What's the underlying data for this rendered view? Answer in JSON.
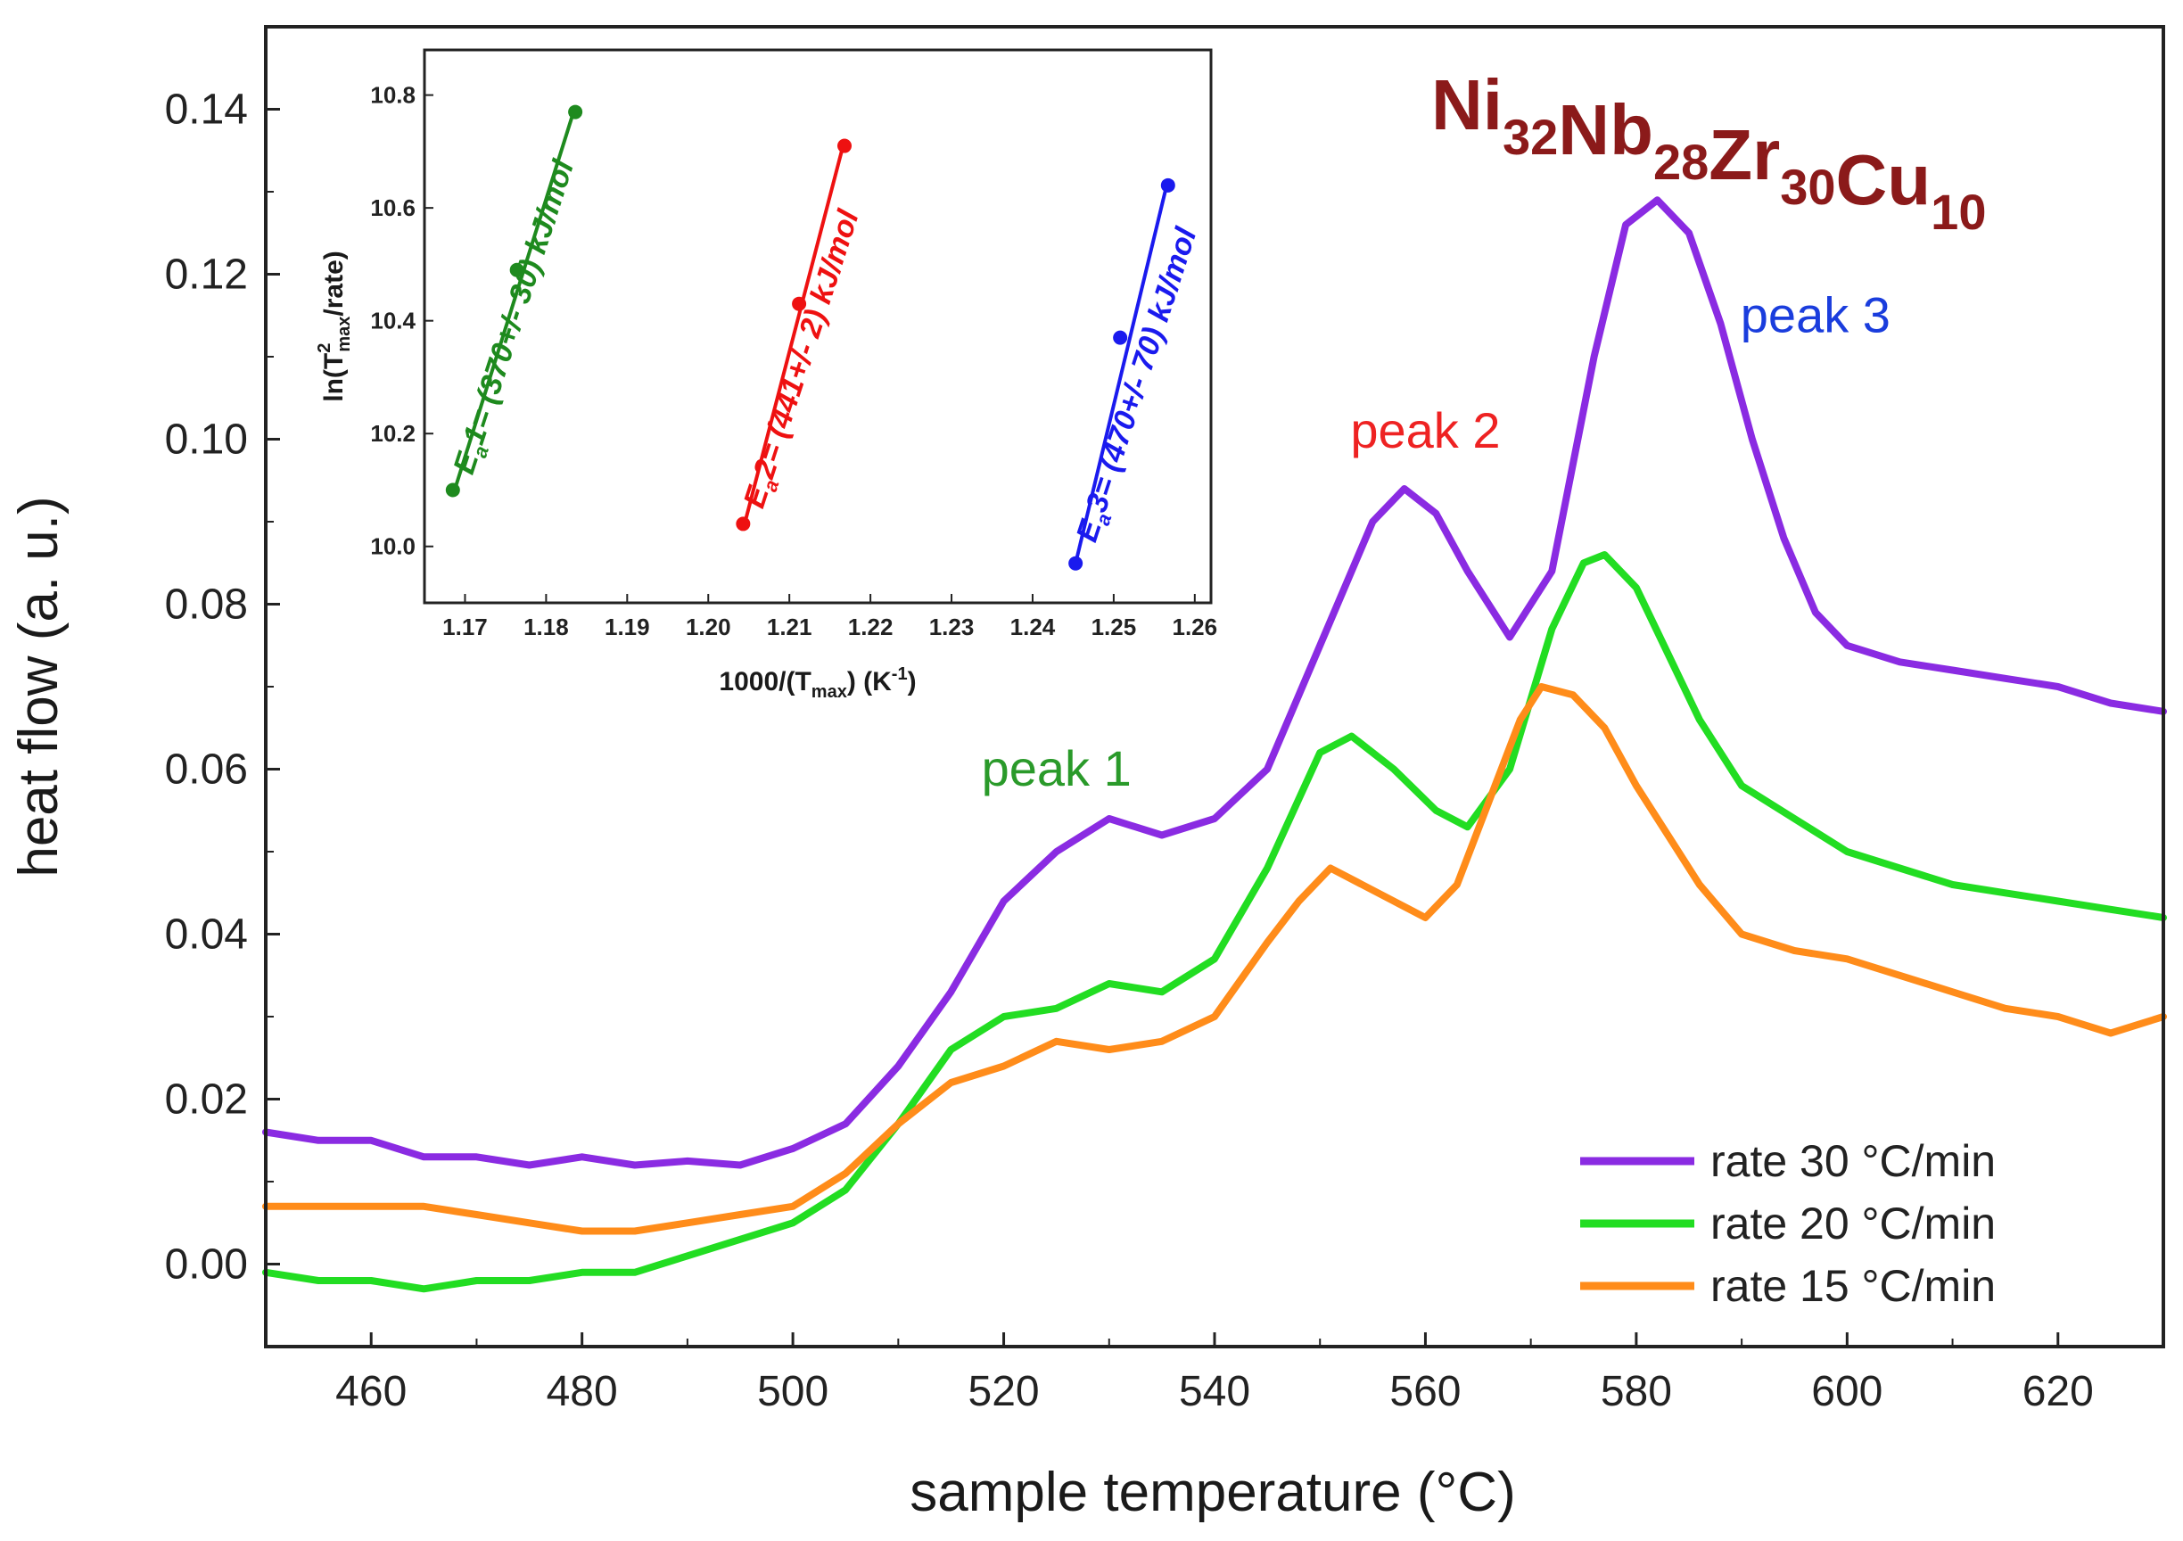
{
  "chart_data": [
    {
      "type": "line",
      "title": "Ni32Nb28Zr30Cu10",
      "title_parts": [
        {
          "text": "Ni",
          "sub": "32"
        },
        {
          "text": "Nb",
          "sub": "28"
        },
        {
          "text": "Zr",
          "sub": "30"
        },
        {
          "text": "Cu",
          "sub": "10"
        }
      ],
      "title_color": "#8b1a1a",
      "xlabel": "sample temperature (°C)",
      "ylabel": "heat flow (a. u.)",
      "xlim": [
        450,
        630
      ],
      "ylim": [
        -0.01,
        0.15
      ],
      "xticks": [
        460,
        480,
        500,
        520,
        540,
        560,
        580,
        600,
        620
      ],
      "yticks": [
        0.0,
        0.02,
        0.04,
        0.06,
        0.08,
        0.1,
        0.12,
        0.14
      ],
      "ytick_labels": [
        "0.00",
        "0.02",
        "0.04",
        "0.06",
        "0.08",
        "0.10",
        "0.12",
        "0.14"
      ],
      "legend_position": "bottom-right",
      "series": [
        {
          "name": "rate 30 °C/min",
          "color": "#8a2be2",
          "x": [
            450,
            455,
            460,
            465,
            470,
            475,
            480,
            485,
            490,
            495,
            500,
            505,
            510,
            515,
            520,
            525,
            530,
            535,
            540,
            545,
            550,
            555,
            558,
            561,
            564,
            568,
            572,
            576,
            579,
            582,
            585,
            588,
            591,
            594,
            597,
            600,
            605,
            610,
            615,
            620,
            625,
            630
          ],
          "y": [
            0.016,
            0.015,
            0.015,
            0.013,
            0.013,
            0.012,
            0.013,
            0.012,
            0.0125,
            0.012,
            0.014,
            0.017,
            0.024,
            0.033,
            0.044,
            0.05,
            0.054,
            0.052,
            0.054,
            0.06,
            0.075,
            0.09,
            0.094,
            0.091,
            0.084,
            0.076,
            0.084,
            0.11,
            0.126,
            0.129,
            0.125,
            0.114,
            0.1,
            0.088,
            0.079,
            0.075,
            0.073,
            0.072,
            0.071,
            0.07,
            0.068,
            0.067
          ]
        },
        {
          "name": "rate 20 °C/min",
          "color": "#22dd22",
          "x": [
            450,
            455,
            460,
            465,
            470,
            475,
            480,
            485,
            490,
            495,
            500,
            505,
            510,
            515,
            520,
            525,
            530,
            535,
            540,
            545,
            550,
            553,
            557,
            561,
            564,
            568,
            572,
            575,
            577,
            580,
            583,
            586,
            590,
            595,
            600,
            605,
            610,
            615,
            620,
            625,
            630
          ],
          "y": [
            -0.001,
            -0.002,
            -0.002,
            -0.003,
            -0.002,
            -0.002,
            -0.001,
            -0.001,
            0.001,
            0.003,
            0.005,
            0.009,
            0.017,
            0.026,
            0.03,
            0.031,
            0.034,
            0.033,
            0.037,
            0.048,
            0.062,
            0.064,
            0.06,
            0.055,
            0.053,
            0.06,
            0.077,
            0.085,
            0.086,
            0.082,
            0.074,
            0.066,
            0.058,
            0.054,
            0.05,
            0.048,
            0.046,
            0.045,
            0.044,
            0.043,
            0.042
          ]
        },
        {
          "name": "rate 15 °C/min",
          "color": "#ff8c1a",
          "x": [
            450,
            455,
            460,
            465,
            470,
            475,
            480,
            485,
            490,
            495,
            500,
            505,
            510,
            515,
            520,
            525,
            530,
            535,
            540,
            545,
            548,
            551,
            554,
            557,
            560,
            563,
            566,
            569,
            571,
            574,
            577,
            580,
            583,
            586,
            590,
            595,
            600,
            605,
            610,
            615,
            620,
            625,
            630
          ],
          "y": [
            0.007,
            0.007,
            0.007,
            0.007,
            0.006,
            0.005,
            0.004,
            0.004,
            0.005,
            0.006,
            0.007,
            0.011,
            0.017,
            0.022,
            0.024,
            0.027,
            0.026,
            0.027,
            0.03,
            0.039,
            0.044,
            0.048,
            0.046,
            0.044,
            0.042,
            0.046,
            0.056,
            0.066,
            0.07,
            0.069,
            0.065,
            0.058,
            0.052,
            0.046,
            0.04,
            0.038,
            0.037,
            0.035,
            0.033,
            0.031,
            0.03,
            0.028,
            0.03
          ]
        }
      ],
      "annotations": [
        {
          "text": "peak 1",
          "color": "#2a9a2a",
          "x": 525,
          "y": 0.058
        },
        {
          "text": "peak 2",
          "color": "#ee2222",
          "x": 560,
          "y": 0.099
        },
        {
          "text": "peak 3",
          "color": "#1a3ddd",
          "x": 597,
          "y": 0.113
        }
      ]
    },
    {
      "type": "scatter",
      "title": "",
      "xlabel": "1000/(Tmax) (K-1)",
      "xlabel_parts": {
        "pre": "1000/(T",
        "sub": "max",
        "mid": ") (K",
        "sup": "-1",
        "post": ")"
      },
      "ylabel": "ln(T2max/rate)",
      "ylabel_parts": {
        "pre": "ln(T",
        "sup": "2",
        "sub": "max",
        "post": "/rate)"
      },
      "xlim": [
        1.165,
        1.262
      ],
      "ylim": [
        9.9,
        10.88
      ],
      "xticks": [
        1.17,
        1.18,
        1.19,
        1.2,
        1.21,
        1.22,
        1.23,
        1.24,
        1.25,
        1.26
      ],
      "xtick_labels": [
        "1.17",
        "1.18",
        "1.19",
        "1.20",
        "1.21",
        "1.22",
        "1.23",
        "1.24",
        "1.25",
        "1.26"
      ],
      "yticks": [
        10.0,
        10.2,
        10.4,
        10.6,
        10.8
      ],
      "ytick_labels": [
        "10.0",
        "10.2",
        "10.4",
        "10.6",
        "10.8"
      ],
      "series": [
        {
          "name": "peak 1",
          "color": "#1e8a1e",
          "x": [
            1.1685,
            1.1764,
            1.1836
          ],
          "y": [
            10.1,
            10.49,
            10.77
          ],
          "fit": {
            "x": [
              1.1685,
              1.1836
            ],
            "y": [
              10.09,
              10.78
            ]
          },
          "label": {
            "pre": "E",
            "sub": "a",
            "post": "1= (370+/- 30) kJ/mol"
          }
        },
        {
          "name": "peak 2",
          "color": "#ee1111",
          "x": [
            1.2043,
            1.2112,
            1.2168
          ],
          "y": [
            10.04,
            10.43,
            10.71
          ],
          "fit": {
            "x": [
              1.2043,
              1.2168
            ],
            "y": [
              10.03,
              10.72
            ]
          },
          "label": {
            "pre": "E",
            "sub": "a",
            "post": "2= (441+/- 2) kJ/mol"
          }
        },
        {
          "name": "peak 3",
          "color": "#1a1aee",
          "x": [
            1.2453,
            1.2508,
            1.2567
          ],
          "y": [
            9.97,
            10.37,
            10.64
          ],
          "fit": {
            "x": [
              1.2453,
              1.2567
            ],
            "y": [
              9.97,
              10.65
            ]
          },
          "label": {
            "pre": "E",
            "sub": "a",
            "post": "3= (470+/- 70) kJ/mol"
          }
        }
      ]
    }
  ]
}
